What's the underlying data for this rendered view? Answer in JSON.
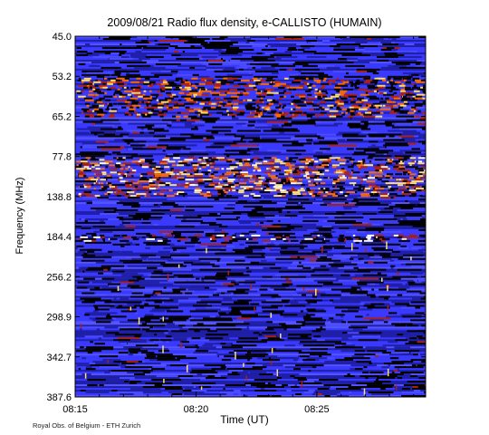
{
  "chart_data": {
    "type": "heatmap",
    "title": "2009/08/21  Radio flux density, e-CALLISTO (HUMAIN)",
    "xlabel": "Time (UT)",
    "ylabel": "Frequency (MHz)",
    "x_ticks": [
      "08:15",
      "08:20",
      "08:25"
    ],
    "y_ticks": [
      "45.0",
      "53.2",
      "65.2",
      "77.8",
      "138.8",
      "184.4",
      "256.2",
      "298.9",
      "342.7",
      "387.6"
    ],
    "x_range": [
      "08:15",
      "08:29:30"
    ],
    "y_range": [
      45.0,
      387.6
    ],
    "colormap": [
      "#000000",
      "#1f1fa8",
      "#3a3aff",
      "#b02010",
      "#ff6a00",
      "#ffe070",
      "#ffffff"
    ],
    "features": [
      {
        "name": "bright band",
        "freq": [
          53.2,
          65.2
        ],
        "intensity": "high"
      },
      {
        "name": "bright band",
        "freq": [
          77.8,
          138.8
        ],
        "intensity": "very high"
      },
      {
        "name": "interference line",
        "freq": 184.4,
        "intensity": "medium"
      }
    ]
  },
  "footer": {
    "credit": "Royal Obs. of Belgium - ETH Zurich"
  }
}
